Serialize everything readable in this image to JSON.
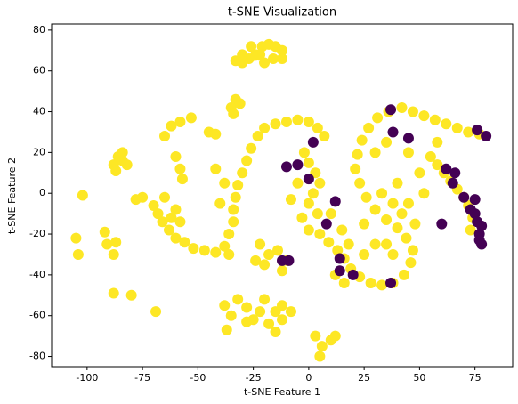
{
  "chart_data": {
    "type": "scatter",
    "title": "t-SNE Visualization",
    "x_label": "t-SNE Feature 1",
    "y_label": "t-SNE Feature 2",
    "xlim": [
      -116,
      92
    ],
    "ylim": [
      -85,
      83
    ],
    "xticks": [
      -100,
      -75,
      -50,
      -25,
      0,
      25,
      50,
      75
    ],
    "yticks": [
      -80,
      -60,
      -40,
      -20,
      0,
      20,
      40,
      60,
      80
    ],
    "grid": false,
    "series": [
      {
        "color": "#fde725",
        "x": [
          -33,
          -30,
          -27,
          -24,
          -21,
          -18,
          -15,
          -12,
          -12,
          -16,
          -20,
          -30,
          -26,
          -22,
          -35,
          -33,
          -31,
          -34,
          -88,
          -86,
          -84,
          -87,
          -84,
          -82,
          -102,
          -105,
          -104,
          -92,
          -91,
          -87,
          -88,
          -88,
          -80,
          -69,
          -78,
          -75,
          -70,
          -68,
          -66,
          -63,
          -60,
          -56,
          -52,
          -47,
          -42,
          -38,
          -36,
          -34,
          -34,
          -33,
          -32,
          -30,
          -28,
          -26,
          -23,
          -20,
          -15,
          -10,
          -5,
          0,
          4,
          7,
          -65,
          -60,
          -58,
          -62,
          -40,
          -38,
          -42,
          -36,
          -65,
          -62,
          -58,
          -53,
          -60,
          -58,
          -57,
          -45,
          -42,
          -38,
          -35,
          -32,
          -28,
          -25,
          -22,
          -18,
          -15,
          -12,
          -12,
          -20,
          -28,
          -37,
          -15,
          -8,
          3,
          6,
          10,
          12,
          5,
          -22,
          -18,
          -14,
          -10,
          -20,
          -12,
          -24,
          -2,
          0,
          3,
          5,
          2,
          0,
          -5,
          -8,
          -3,
          0,
          4,
          5,
          9,
          13,
          16,
          19,
          23,
          28,
          33,
          38,
          43,
          46,
          47,
          44,
          40,
          35,
          30,
          26,
          23,
          21,
          22,
          24,
          27,
          31,
          36,
          42,
          47,
          52,
          57,
          62,
          67,
          72,
          77,
          55,
          58,
          61,
          64,
          67,
          70,
          72,
          74,
          73,
          35,
          38,
          42,
          45,
          48,
          30,
          25,
          15,
          10,
          12,
          16,
          30,
          35,
          45,
          50,
          40,
          52,
          58,
          38,
          33,
          25,
          18
        ],
        "values": [
          65,
          64,
          66,
          68,
          72,
          73,
          72,
          70,
          66,
          66,
          64,
          68,
          72,
          68,
          42,
          46,
          44,
          39,
          14,
          18,
          16,
          11,
          20,
          14,
          -1,
          -22,
          -30,
          -19,
          -25,
          -24,
          -30,
          -49,
          -50,
          -58,
          -3,
          -2,
          -6,
          -10,
          -14,
          -18,
          -22,
          -24,
          -27,
          -28,
          -29,
          -26,
          -20,
          -14,
          -8,
          -2,
          4,
          10,
          16,
          22,
          28,
          32,
          34,
          35,
          36,
          35,
          32,
          28,
          -2,
          -8,
          -14,
          -12,
          -5,
          5,
          12,
          -30,
          28,
          33,
          35,
          37,
          18,
          12,
          7,
          30,
          29,
          -55,
          -60,
          -52,
          -56,
          -62,
          -58,
          -64,
          -58,
          -62,
          -55,
          -52,
          -63,
          -67,
          -68,
          -58,
          -70,
          -75,
          -72,
          -70,
          -80,
          -25,
          -30,
          -28,
          -33,
          -35,
          -38,
          -33,
          20,
          15,
          10,
          5,
          0,
          -5,
          5,
          -3,
          -12,
          -18,
          -10,
          -20,
          -24,
          -28,
          -32,
          -37,
          -41,
          -44,
          -45,
          -44,
          -40,
          -34,
          -28,
          -22,
          -17,
          -13,
          -8,
          -2,
          5,
          12,
          19,
          26,
          32,
          37,
          40,
          42,
          40,
          38,
          36,
          34,
          32,
          30,
          29,
          18,
          14,
          10,
          6,
          2,
          -2,
          -6,
          -12,
          -18,
          -25,
          -30,
          -10,
          -5,
          -15,
          -25,
          -30,
          -18,
          -10,
          -40,
          -44,
          20,
          25,
          20,
          10,
          5,
          0,
          25,
          -5,
          0,
          -15,
          -25
        ]
      },
      {
        "color": "#440154",
        "x": [
          37,
          38,
          45,
          -10,
          -5,
          2,
          0,
          12,
          8,
          -12,
          -9,
          14,
          37,
          60,
          62,
          65,
          66,
          70,
          73,
          75,
          76,
          78,
          77,
          77,
          78,
          75,
          76,
          80,
          20,
          14
        ],
        "values": [
          41,
          30,
          27,
          13,
          14,
          25,
          7,
          -4,
          -15,
          -33,
          -33,
          -32,
          -44,
          -15,
          12,
          5,
          10,
          -2,
          -8,
          -10,
          -14,
          -16,
          -20,
          -23,
          -25,
          -3,
          31,
          28,
          -40,
          -38
        ]
      }
    ]
  }
}
